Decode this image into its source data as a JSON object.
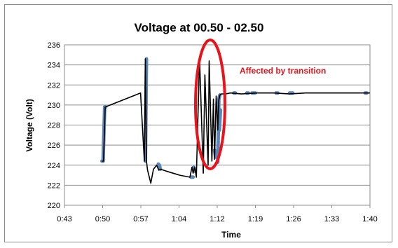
{
  "chart_data": {
    "type": "line",
    "title": "Voltage at 00.50 - 02.50",
    "xlabel": "Time",
    "ylabel": "Voltage  (Volt)",
    "x_ticks": [
      "0:43",
      "0:50",
      "0:57",
      "1:04",
      "1:12",
      "1:19",
      "1:26",
      "1:33",
      "1:40"
    ],
    "x_range_minutes": [
      43,
      100
    ],
    "y_ticks": [
      220,
      222,
      224,
      226,
      228,
      230,
      232,
      234,
      236
    ],
    "ylim": [
      220,
      236
    ],
    "grid": true,
    "legend": "none",
    "annotation": {
      "text": "Affected by transition",
      "color": "#e8131b"
    },
    "series": [
      {
        "color": "#5b86b8",
        "segments": [
          {
            "x": [
              50.0,
              50.2
            ],
            "y": [
              224.4,
              224.4
            ]
          },
          {
            "x": [
              50.5,
              50.7
            ],
            "y": [
              229.8,
              229.8
            ]
          },
          {
            "x": [
              50.2,
              50.5
            ],
            "y": [
              224.4,
              229.8
            ]
          },
          {
            "x": [
              58.1,
              58.3
            ],
            "y": [
              224.4,
              234.6
            ]
          },
          {
            "x": [
              60.5,
              60.7,
              60.9
            ],
            "y": [
              224.1,
              224.0,
              223.6
            ]
          },
          {
            "x": [
              66.6,
              67.0
            ],
            "y": [
              222.8,
              222.8
            ]
          },
          {
            "x": [
              67.1,
              67.3
            ],
            "y": [
              223.8,
              223.4
            ]
          },
          {
            "x": [
              71.0,
              71.2
            ],
            "y": [
              225.5,
              224.8
            ]
          },
          {
            "x": [
              71.6,
              71.8,
              72.0
            ],
            "y": [
              224.3,
              230.6,
              231.0
            ]
          },
          {
            "x": [
              71.9,
              72.1
            ],
            "y": [
              227.5,
              229.5
            ]
          },
          {
            "x": [
              74.6,
              74.9
            ],
            "y": [
              231.2,
              231.2
            ]
          },
          {
            "x": [
              77.0,
              77.3
            ],
            "y": [
              231.2,
              231.2
            ]
          },
          {
            "x": [
              78.0,
              78.6
            ],
            "y": [
              231.2,
              231.2
            ]
          },
          {
            "x": [
              82.5,
              82.8
            ],
            "y": [
              231.2,
              231.2
            ]
          },
          {
            "x": [
              85.0,
              85.6
            ],
            "y": [
              231.2,
              231.2
            ]
          },
          {
            "x": [
              99.1,
              99.4
            ],
            "y": [
              231.2,
              231.2
            ]
          }
        ]
      },
      {
        "color": "#000000",
        "x": [
          50.0,
          50.3,
          50.6,
          57.2,
          57.9,
          58.1,
          58.3,
          58.5,
          59.1,
          59.6,
          60.2,
          60.6,
          60.9,
          62.0,
          64.5,
          66.4,
          66.8,
          67.0,
          67.3,
          67.6,
          68.2,
          68.9,
          69.2,
          69.8,
          70.0,
          70.5,
          70.8,
          71.0,
          71.3,
          71.6,
          71.8,
          72.0,
          72.3,
          73.0,
          74.0,
          76.0,
          79.0,
          82.0,
          85.0,
          88.0,
          91.0,
          94.0,
          97.0,
          100.0
        ],
        "y": [
          224.4,
          224.4,
          229.8,
          231.2,
          224.4,
          234.6,
          224.4,
          223.5,
          222.2,
          223.6,
          224.0,
          223.5,
          223.6,
          223.4,
          223.0,
          222.8,
          223.8,
          223.2,
          223.8,
          222.8,
          234.7,
          223.2,
          233.0,
          224.0,
          234.4,
          224.4,
          230.6,
          224.6,
          230.9,
          227.5,
          230.5,
          231.0,
          231.1,
          231.1,
          231.2,
          231.1,
          231.2,
          231.2,
          231.1,
          231.2,
          231.2,
          231.2,
          231.2,
          231.2
        ]
      }
    ]
  }
}
